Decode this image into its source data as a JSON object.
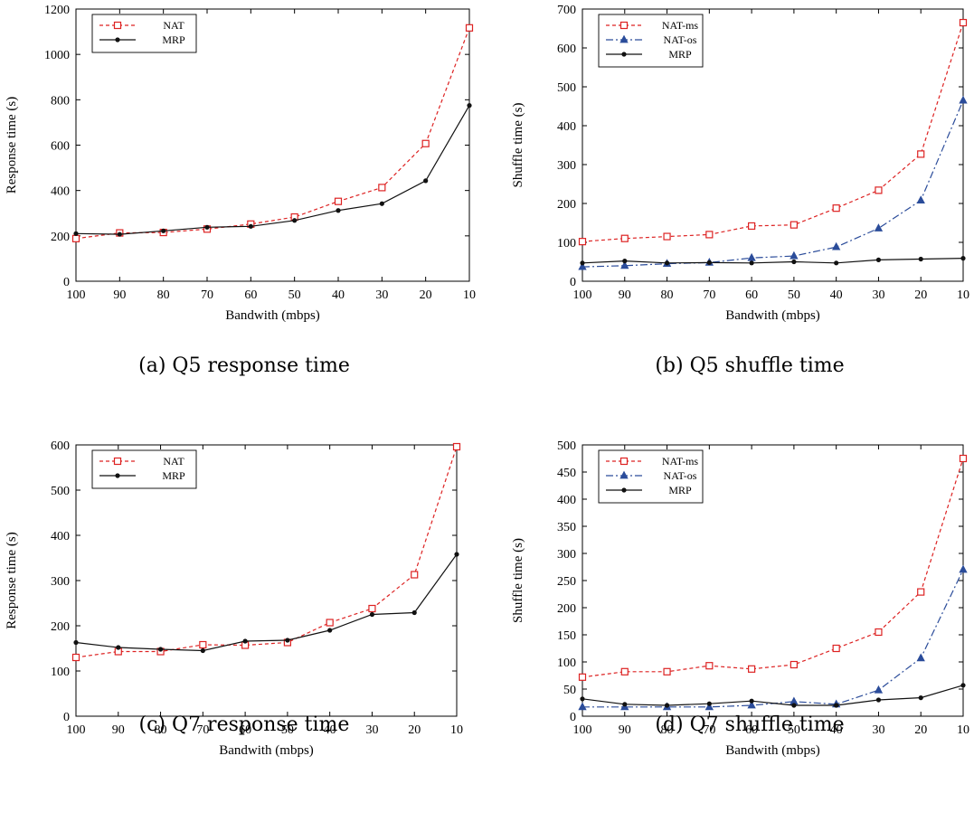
{
  "chart_data": [
    {
      "type": "line",
      "caption": "(a) Q5 response time",
      "xlabel": "Bandwith (mbps)",
      "ylabel": "Response time (s)",
      "categories": [
        "100",
        "90",
        "80",
        "70",
        "60",
        "50",
        "40",
        "30",
        "20",
        "10"
      ],
      "ylim": [
        0,
        1200
      ],
      "yticks": [
        "0",
        "200",
        "400",
        "600",
        "800",
        "1000",
        "1200"
      ],
      "legend_position": "top-left",
      "grid": false,
      "series": [
        {
          "name": "NAT",
          "color": "#dd2222",
          "marker": "square-open",
          "dash": "dashed",
          "values": [
            188,
            213,
            215,
            230,
            252,
            283,
            352,
            413,
            607,
            1117
          ]
        },
        {
          "name": "MRP",
          "color": "#111111",
          "marker": "dot",
          "dash": "solid",
          "values": [
            210,
            207,
            222,
            238,
            242,
            268,
            312,
            342,
            443,
            775
          ]
        }
      ]
    },
    {
      "type": "line",
      "caption": "(b) Q5 shuffle time",
      "xlabel": "Bandwith (mbps)",
      "ylabel": "Shuffle time (s)",
      "categories": [
        "100",
        "90",
        "80",
        "70",
        "60",
        "50",
        "40",
        "30",
        "20",
        "10"
      ],
      "ylim": [
        0,
        700
      ],
      "yticks": [
        "0",
        "100",
        "200",
        "300",
        "400",
        "500",
        "600",
        "700"
      ],
      "legend_position": "top-left",
      "grid": false,
      "series": [
        {
          "name": "NAT-ms",
          "color": "#dd2222",
          "marker": "square-open",
          "dash": "dashed",
          "values": [
            102,
            110,
            115,
            120,
            142,
            145,
            188,
            234,
            327,
            665
          ]
        },
        {
          "name": "NAT-os",
          "color": "#2b4c9a",
          "marker": "triangle",
          "dash": "dashdot",
          "values": [
            37,
            40,
            45,
            48,
            60,
            65,
            88,
            136,
            208,
            465
          ]
        },
        {
          "name": "MRP",
          "color": "#111111",
          "marker": "dot",
          "dash": "solid",
          "values": [
            47,
            52,
            47,
            48,
            47,
            50,
            47,
            55,
            57,
            59
          ]
        }
      ]
    },
    {
      "type": "line",
      "caption": "(c) Q7 response time",
      "xlabel": "Bandwith (mbps)",
      "ylabel": "Response time (s)",
      "categories": [
        "100",
        "90",
        "80",
        "70",
        "60",
        "50",
        "40",
        "30",
        "20",
        "10"
      ],
      "ylim": [
        0,
        600
      ],
      "yticks": [
        "0",
        "100",
        "200",
        "300",
        "400",
        "500",
        "600"
      ],
      "legend_position": "top-left",
      "grid": false,
      "series": [
        {
          "name": "NAT",
          "color": "#dd2222",
          "marker": "square-open",
          "dash": "dashed",
          "values": [
            130,
            143,
            143,
            158,
            157,
            163,
            207,
            238,
            313,
            596
          ]
        },
        {
          "name": "MRP",
          "color": "#111111",
          "marker": "dot",
          "dash": "solid",
          "values": [
            163,
            152,
            148,
            145,
            166,
            168,
            190,
            225,
            229,
            358
          ]
        }
      ]
    },
    {
      "type": "line",
      "caption": "(d) Q7 shuffle time",
      "xlabel": "Bandwith (mbps)",
      "ylabel": "Shuffle time (s)",
      "categories": [
        "100",
        "90",
        "80",
        "70",
        "60",
        "50",
        "40",
        "30",
        "20",
        "10"
      ],
      "ylim": [
        0,
        500
      ],
      "yticks": [
        "0",
        "50",
        "100",
        "150",
        "200",
        "250",
        "300",
        "350",
        "400",
        "450",
        "500"
      ],
      "legend_position": "top-left",
      "grid": false,
      "series": [
        {
          "name": "NAT-ms",
          "color": "#dd2222",
          "marker": "square-open",
          "dash": "dashed",
          "values": [
            72,
            82,
            82,
            93,
            87,
            95,
            125,
            155,
            229,
            475
          ]
        },
        {
          "name": "NAT-os",
          "color": "#2b4c9a",
          "marker": "triangle",
          "dash": "dashdot",
          "values": [
            17,
            17,
            17,
            17,
            20,
            27,
            22,
            48,
            107,
            270
          ]
        },
        {
          "name": "MRP",
          "color": "#111111",
          "marker": "dot",
          "dash": "solid",
          "values": [
            32,
            22,
            20,
            23,
            28,
            20,
            20,
            30,
            34,
            57
          ]
        }
      ]
    }
  ]
}
